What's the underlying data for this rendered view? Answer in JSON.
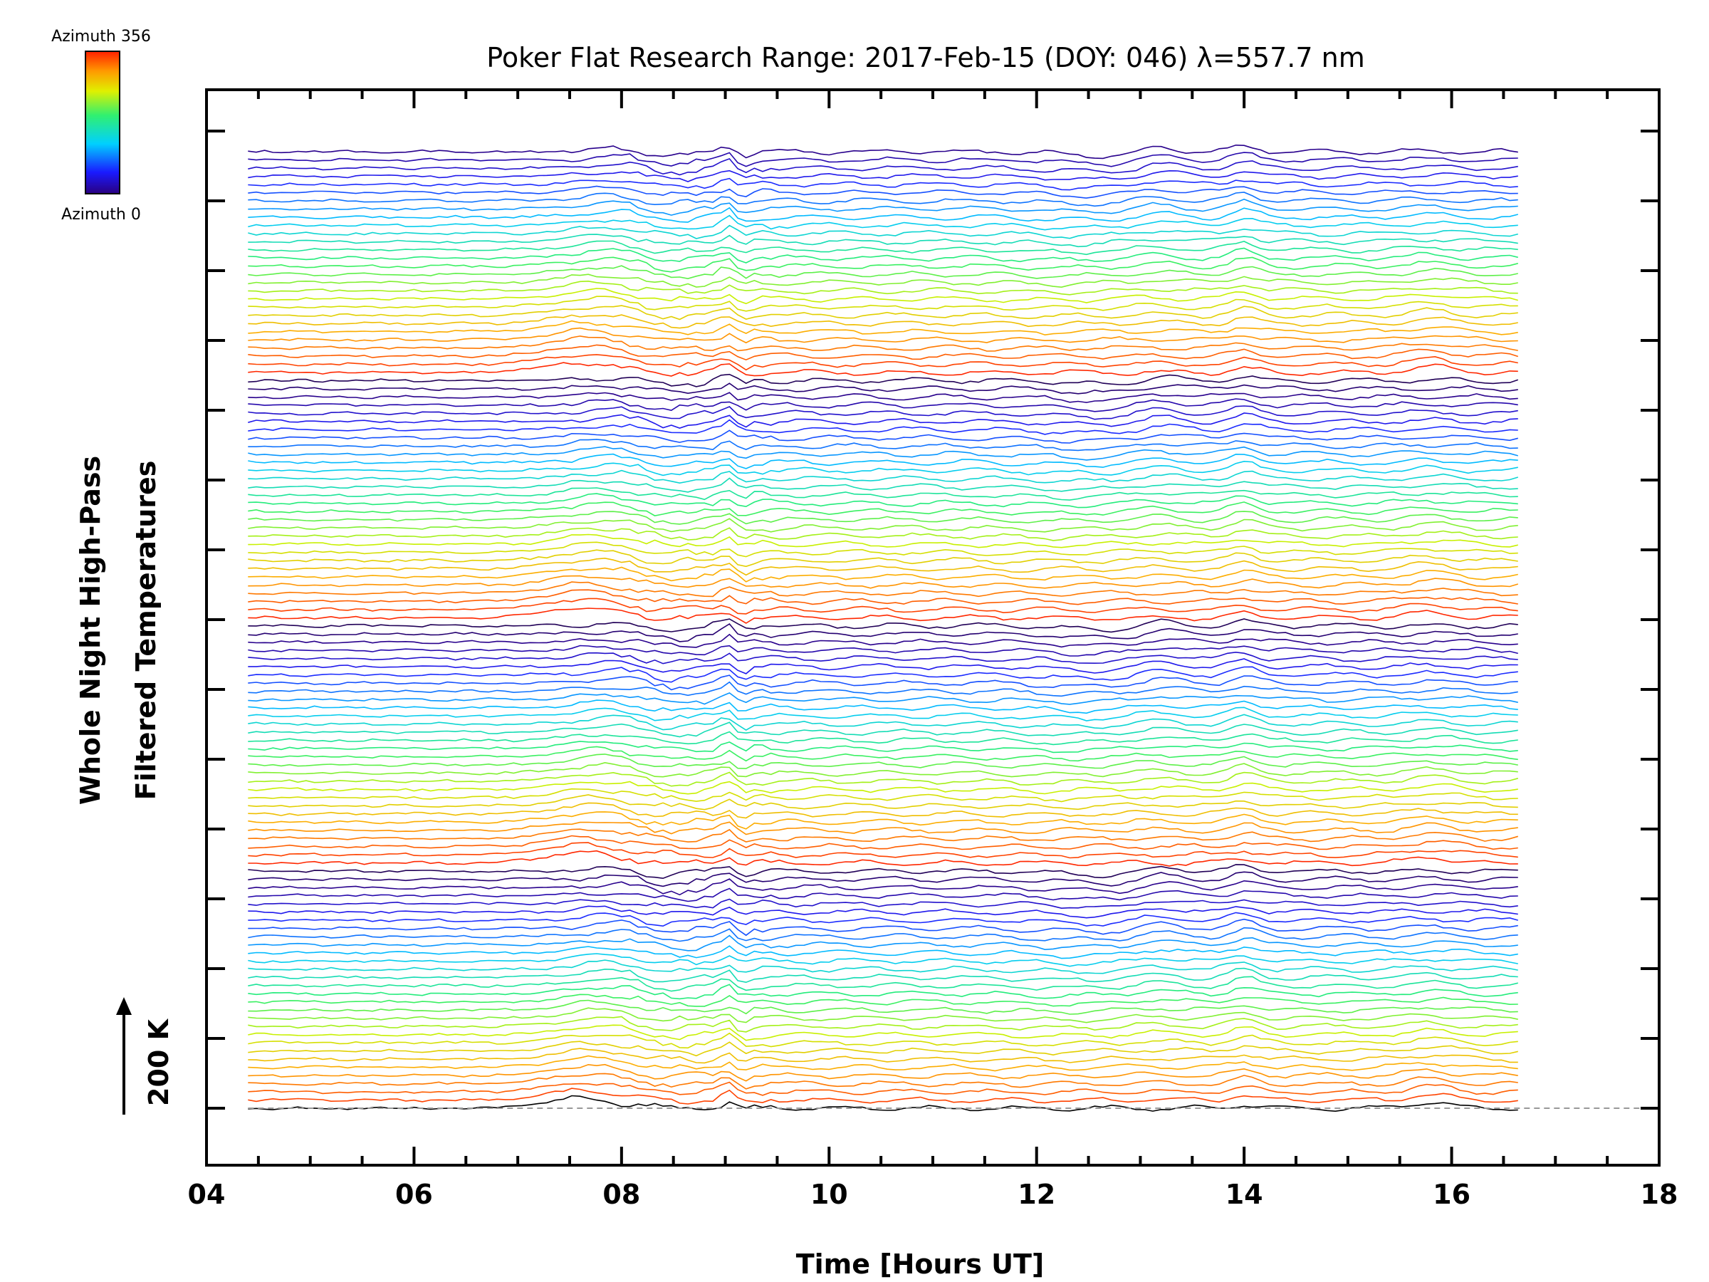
{
  "chart_data": {
    "type": "line",
    "title": "Poker Flat Research Range: 2017-Feb-15 (DOY: 046) λ=557.7 nm",
    "xlabel": "Time [Hours UT]",
    "ylabel_line1": "Whole Night High-Pass",
    "ylabel_line2": "Filtered Temperatures",
    "scale_bar_label": "200 K",
    "xlim": [
      4,
      18
    ],
    "x_ticks": [
      "04",
      "06",
      "08",
      "10",
      "12",
      "14",
      "16",
      "18"
    ],
    "x_tick_values": [
      4,
      6,
      8,
      10,
      12,
      14,
      16,
      18
    ],
    "colorbar": {
      "top_label": "Azimuth 356",
      "bottom_label": "Azimuth 0",
      "colormap": "rainbow (violet-blue-cyan-green-yellow-orange-red)"
    },
    "baseline_style": "dashed gray",
    "n_series": 118,
    "x_start": 4.4,
    "x_end": 16.7,
    "colors": {
      "frame": "#000000",
      "baseline": "#999999",
      "background": "#ffffff"
    }
  }
}
